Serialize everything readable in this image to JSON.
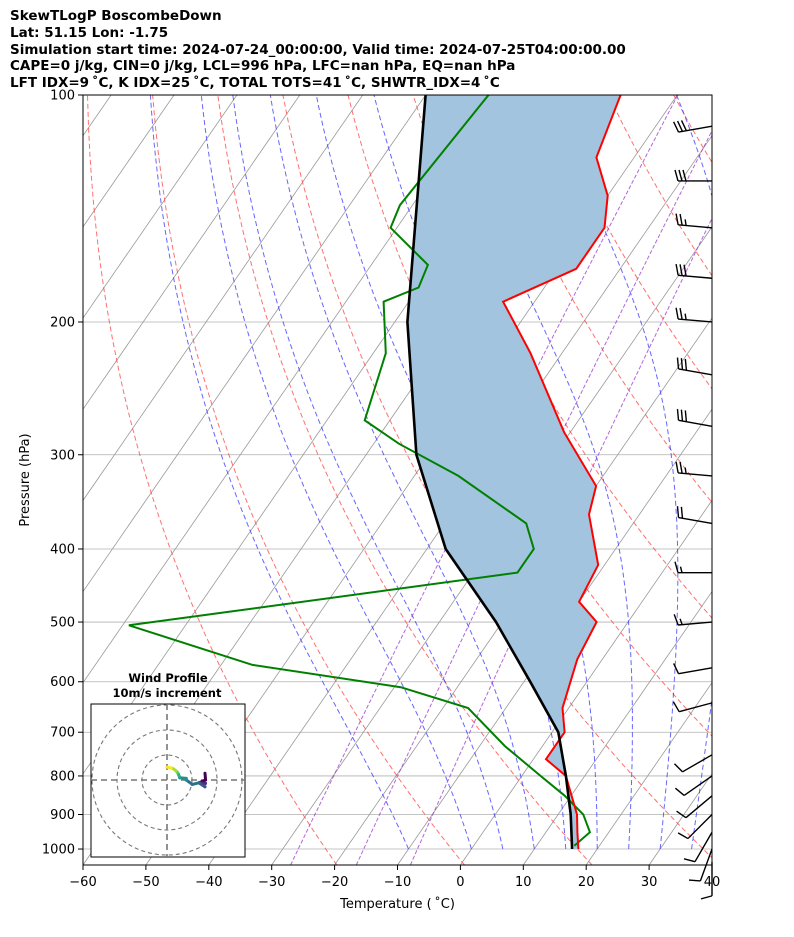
{
  "header": {
    "line1": "SkewTLogP BoscombeDown",
    "line2": "Lat: 51.15   Lon: -1.75",
    "line3": "Simulation start time: 2024-07-24_00:00:00, Valid time: 2024-07-25T04:00:00.00",
    "line4": "CAPE=0 j/kg, CIN=0 j/kg, LCL=996 hPa, LFC=nan hPa, EQ=nan hPa",
    "line5": "LFT IDX=9 ˚C, K IDX=25 ˚C, TOTAL TOTS=41 ˚C, SHWTR_IDX=4 ˚C"
  },
  "colors": {
    "temperature": "#ff0000",
    "dewpoint": "#008000",
    "parcel": "#000000",
    "cape_fill": "#a2c4de",
    "dry_adiabat": "#ff4040",
    "moist_adiabat": "#3333ff",
    "mixing_ratio": "#9933cc",
    "isotherm": "#999999",
    "grid": "#b0b0b0"
  },
  "chart_data": {
    "type": "line",
    "title": "",
    "xlabel": "Temperature ( ˚C)",
    "ylabel": "Pressure (hPa)",
    "xlim": [
      -60,
      40
    ],
    "ylim": [
      1050,
      100
    ],
    "y_scale": "log",
    "x_ticks": [
      "−60",
      "−50",
      "−40",
      "−30",
      "−20",
      "−10",
      "0",
      "10",
      "20",
      "30",
      "40"
    ],
    "y_ticks": [
      "100",
      "200",
      "300",
      "400",
      "500",
      "600",
      "700",
      "800",
      "900",
      "1000"
    ],
    "grid": true,
    "series": [
      {
        "key": "temperature",
        "pressure": [
          100,
          121,
          136,
          150,
          170,
          188,
          220,
          280,
          330,
          360,
          420,
          470,
          500,
          560,
          650,
          700,
          760,
          800,
          900,
          950,
          1000
        ],
        "temperature": [
          -59,
          -56,
          -50,
          -47,
          -47,
          -55,
          -45,
          -31,
          -20,
          -18,
          -11,
          -10,
          -5,
          -4,
          -1,
          2,
          2,
          7,
          13,
          15,
          17
        ]
      },
      {
        "key": "dewpoint",
        "pressure": [
          100,
          140,
          150,
          168,
          180,
          188,
          220,
          270,
          290,
          320,
          370,
          400,
          430,
          505,
          570,
          610,
          650,
          730,
          800,
          850,
          900,
          950,
          990
        ],
        "temperature": [
          -80,
          -82,
          -81,
          -71,
          -70,
          -74,
          -68,
          -64,
          -56,
          -43,
          -27,
          -23,
          -23,
          -79,
          -55,
          -29,
          -16,
          -6,
          3,
          9,
          14,
          17,
          16
        ]
      },
      {
        "key": "parcel",
        "pressure": [
          100,
          200,
          300,
          400,
          500,
          600,
          700,
          800,
          900,
          1000
        ],
        "temperature": [
          -90,
          -68,
          -52,
          -37,
          -21,
          -9,
          1,
          7,
          12,
          16
        ]
      }
    ],
    "wind_barbs": {
      "pressure": [
        110,
        130,
        150,
        175,
        200,
        235,
        275,
        320,
        370,
        430,
        500,
        575,
        640,
        750,
        800,
        850,
        900,
        950,
        1000,
        1040
      ],
      "direction": [
        260,
        270,
        275,
        275,
        275,
        280,
        280,
        275,
        280,
        270,
        265,
        260,
        255,
        240,
        235,
        230,
        225,
        210,
        200,
        180
      ],
      "speed_kt": [
        30,
        30,
        25,
        30,
        25,
        30,
        30,
        25,
        20,
        15,
        15,
        10,
        10,
        10,
        10,
        10,
        10,
        10,
        10,
        10
      ]
    },
    "inset": {
      "title": "Wind Profile",
      "subtitle": "10m/s increment",
      "rings": 3
    }
  }
}
